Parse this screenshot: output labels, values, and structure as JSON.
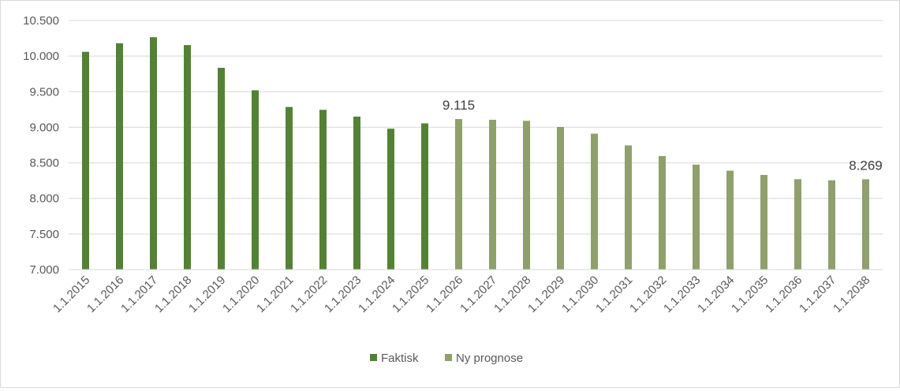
{
  "chart_data": {
    "type": "bar",
    "categories": [
      "1.1.2015",
      "1.1.2016",
      "1.1.2017",
      "1.1.2018",
      "1.1.2019",
      "1.1.2020",
      "1.1.2021",
      "1.1.2022",
      "1.1.2023",
      "1.1.2024",
      "1.1.2025",
      "1.1.2026",
      "1.1.2027",
      "1.1.2028",
      "1.1.2029",
      "1.1.2030",
      "1.1.2031",
      "1.1.2032",
      "1.1.2033",
      "1.1.2034",
      "1.1.2035",
      "1.1.2036",
      "1.1.2037",
      "1.1.2038"
    ],
    "series": [
      {
        "name": "Faktisk",
        "color": "#548235",
        "values": [
          10060,
          10180,
          10265,
          10155,
          9835,
          9520,
          9285,
          9245,
          9150,
          8980,
          9055,
          null,
          null,
          null,
          null,
          null,
          null,
          null,
          null,
          null,
          null,
          null,
          null,
          null
        ]
      },
      {
        "name": "Ny prognose",
        "color": "#8FA06D",
        "values": [
          null,
          null,
          null,
          null,
          null,
          null,
          null,
          null,
          null,
          null,
          null,
          9115,
          9105,
          9090,
          9005,
          8910,
          8745,
          8595,
          8475,
          8390,
          8330,
          8270,
          8255,
          8269
        ]
      }
    ],
    "data_labels": [
      {
        "category": "1.1.2026",
        "text": "9.115"
      },
      {
        "category": "1.1.2038",
        "text": "8.269"
      }
    ],
    "y_ticks": [
      "7.000",
      "7.500",
      "8.000",
      "8.500",
      "9.000",
      "9.500",
      "10.000",
      "10.500"
    ],
    "ylim": [
      7000,
      10500
    ],
    "grid": true,
    "legend_position": "bottom",
    "title": "",
    "xlabel": "",
    "ylabel": ""
  }
}
